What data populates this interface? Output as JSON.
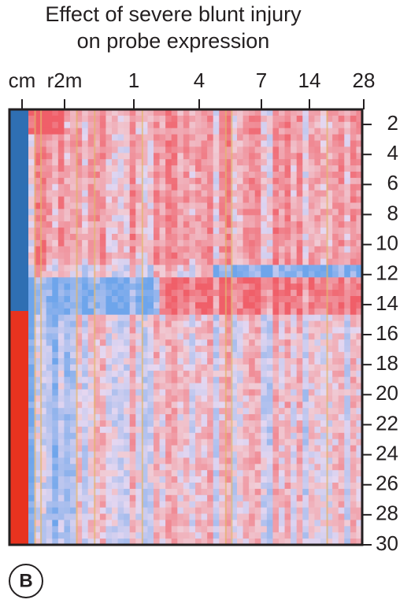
{
  "chart_data": {
    "type": "heatmap",
    "title": [
      "Effect of severe blunt injury",
      "on probe expression"
    ],
    "categories": [
      "cm",
      "r2m",
      "1",
      "4",
      "7",
      "14",
      "28"
    ],
    "ylim": [
      1,
      30
    ],
    "yticks": [
      2,
      4,
      6,
      8,
      10,
      12,
      14,
      16,
      18,
      20,
      22,
      24,
      26,
      28,
      30
    ],
    "panel_label": "B"
  }
}
